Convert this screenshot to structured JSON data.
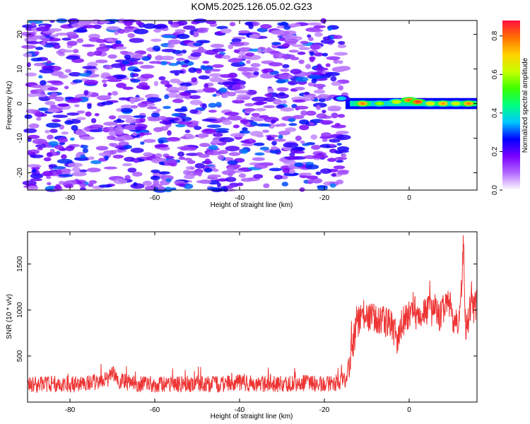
{
  "chart_data": [
    {
      "type": "heatmap",
      "title": "KOM5.2025.126.05.02.G23",
      "xlabel": "Height of straight line (km)",
      "ylabel": "Frequency (Hz)",
      "xlim": [
        -90,
        16
      ],
      "ylim": [
        -25,
        24
      ],
      "xticks": [
        -80,
        -60,
        -40,
        -20,
        0
      ],
      "yticks": [
        -20,
        -10,
        0,
        10,
        20
      ],
      "colorbar": {
        "label": "Normalized spectral amplitude",
        "range": [
          0,
          0.88
        ],
        "ticks": [
          "0.0",
          "0.2",
          "0.4",
          "0.6",
          "0.8"
        ],
        "colors": [
          "#ffffff",
          "#b36bff",
          "#7a00ff",
          "#0000ff",
          "#00c8ff",
          "#00ff80",
          "#3cff00",
          "#c8ff00",
          "#ffd000",
          "#ff7000",
          "#ff1040"
        ]
      },
      "noise_region": {
        "x": [
          -90,
          -15
        ],
        "y": [
          -25,
          24
        ],
        "amplitude": [
          0.0,
          0.25
        ]
      },
      "signal_band": {
        "x": [
          -17,
          16
        ],
        "freq": [
          0,
          0
        ],
        "peaks": [
          {
            "x": -16,
            "freq": 1.5,
            "amp": 0.35
          },
          {
            "x": -11,
            "freq": 0,
            "amp": 0.72
          },
          {
            "x": -7,
            "freq": 0,
            "amp": 0.55
          },
          {
            "x": -3,
            "freq": 0.5,
            "amp": 0.6
          },
          {
            "x": 0,
            "freq": 1,
            "amp": 0.75
          },
          {
            "x": 2,
            "freq": 0.5,
            "amp": 0.78
          },
          {
            "x": 5,
            "freq": 0,
            "amp": 0.62
          },
          {
            "x": 8,
            "freq": 0,
            "amp": 0.7
          },
          {
            "x": 11,
            "freq": 0,
            "amp": 0.6
          },
          {
            "x": 14,
            "freq": 0,
            "amp": 0.72
          }
        ]
      }
    },
    {
      "type": "line",
      "title": "",
      "xlabel": "Height of straight line (km)",
      "ylabel": "SNR (10 * v/v)",
      "xlim": [
        -90,
        16
      ],
      "ylim": [
        0,
        1850
      ],
      "xticks": [
        -80,
        -60,
        -40,
        -20,
        0
      ],
      "yticks": [
        500,
        1000,
        1500
      ],
      "series": [
        {
          "color": "#ee3333",
          "x": [
            -90,
            -85,
            -80,
            -75,
            -71,
            -70,
            -69,
            -65,
            -60,
            -55,
            -50,
            -45,
            -40,
            -35,
            -30,
            -25,
            -20,
            -17,
            -16,
            -15,
            -14,
            -13,
            -12,
            -11,
            -10,
            -8,
            -6,
            -4,
            -3,
            -2,
            -1,
            0,
            1,
            2,
            3,
            4,
            5,
            6,
            7,
            8,
            9,
            10,
            11,
            12,
            12.8,
            13.3,
            14,
            14.7,
            15.3,
            16
          ],
          "y": [
            180,
            200,
            190,
            210,
            250,
            330,
            240,
            200,
            190,
            195,
            200,
            190,
            210,
            200,
            195,
            205,
            200,
            210,
            230,
            250,
            450,
            700,
            880,
            950,
            920,
            900,
            870,
            850,
            650,
            820,
            900,
            960,
            1050,
            880,
            920,
            1000,
            980,
            1020,
            900,
            1000,
            1100,
            950,
            850,
            900,
            1750,
            800,
            900,
            1150,
            1000,
            1100
          ]
        }
      ]
    }
  ]
}
